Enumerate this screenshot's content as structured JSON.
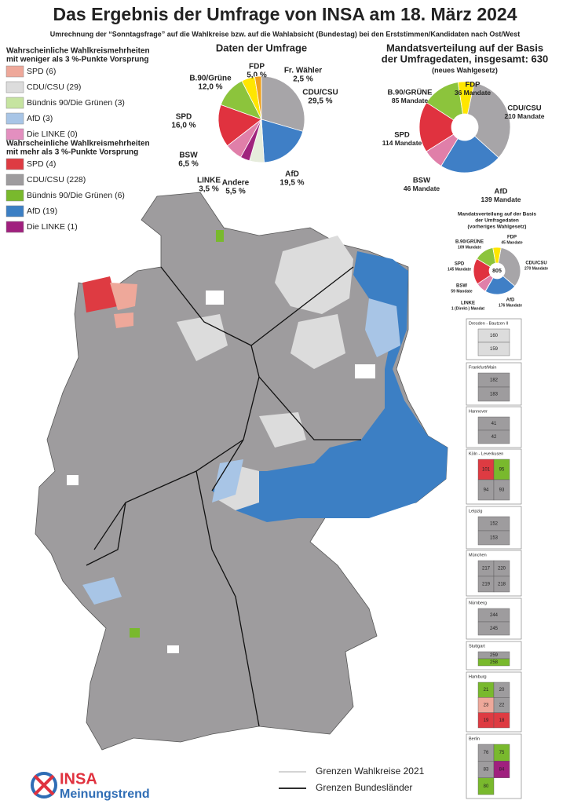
{
  "header": {
    "title": "Das Ergebnis der Umfrage von INSA am 18. März 2024",
    "subtitle": "Umrechnung der “Sonntagsfrage” auf die Wahlkreise bzw. auf die Wahlabsicht (Bundestag) bei den Erststimmen/Kandidaten nach Ost/West"
  },
  "legends": [
    {
      "title": [
        "Wahrscheinliche Wahlkreismehrheiten",
        "mit weniger als 3 %-Punkte Vorsprung"
      ],
      "items": [
        {
          "label": "SPD (6)",
          "color": "#eea89a"
        },
        {
          "label": "CDU/CSU (29)",
          "color": "#dcdcdc"
        },
        {
          "label": "Bündnis 90/Die Grünen (3)",
          "color": "#c6e4a0"
        },
        {
          "label": "AfD (3)",
          "color": "#a8c5e6"
        },
        {
          "label": "Die LINKE (0)",
          "color": "#e38fbf"
        }
      ]
    },
    {
      "title": [
        "Wahrscheinliche Wahlkreismehrheiten",
        "mit mehr als 3 %-Punkte Vorsprung"
      ],
      "items": [
        {
          "label": "SPD (4)",
          "color": "#de3b42"
        },
        {
          "label": "CDU/CSU (228)",
          "color": "#9e9c9e"
        },
        {
          "label": "Bündnis 90/Die Grünen (6)",
          "color": "#79b92d"
        },
        {
          "label": "AfD (19)",
          "color": "#3c7fc4"
        },
        {
          "label": "Die LINKE (1)",
          "color": "#a0207e"
        }
      ]
    }
  ],
  "pies": [
    {
      "title": [
        "Daten der Umfrage"
      ],
      "slices": [
        {
          "name": "CDU/CSU",
          "value": 29.5,
          "value_label": "29,5 %",
          "color": "#a7a5a8"
        },
        {
          "name": "AfD",
          "value": 19.5,
          "value_label": "19,5 %",
          "color": "#3f7fc6"
        },
        {
          "name": "Andere",
          "value": 5.5,
          "value_label": "5,5 %",
          "color": "#e6ecdc"
        },
        {
          "name": "LINKE",
          "value": 3.5,
          "value_label": "3,5 %",
          "color": "#a0237d"
        },
        {
          "name": "BSW",
          "value": 6.5,
          "value_label": "6,5 %",
          "color": "#e07fa9"
        },
        {
          "name": "SPD",
          "value": 16.0,
          "value_label": "16,0 %",
          "color": "#e0323f"
        },
        {
          "name": "B.90/Grüne",
          "value": 12.0,
          "value_label": "12,0 %",
          "color": "#8cc43c"
        },
        {
          "name": "FDP",
          "value": 5.0,
          "value_label": "5,0 %",
          "color": "#ffe600"
        },
        {
          "name": "Fr. Wähler",
          "value": 2.5,
          "value_label": "2,5 %",
          "color": "#f0a21c"
        }
      ]
    },
    {
      "title": [
        "Mandatsverteilung auf der Basis",
        "der Umfragedaten, insgesamt: 630",
        "(neues Wahlgesetz)"
      ],
      "slices": [
        {
          "name": "CDU/CSU",
          "value": 210,
          "value_label": "210 Mandate",
          "color": "#a7a5a8"
        },
        {
          "name": "AfD",
          "value": 139,
          "value_label": "139 Mandate",
          "color": "#3f7fc6"
        },
        {
          "name": "BSW",
          "value": 46,
          "value_label": "46 Mandate",
          "color": "#e07fa9"
        },
        {
          "name": "SPD",
          "value": 114,
          "value_label": "114 Mandate",
          "color": "#e0323f"
        },
        {
          "name": "B.90/GRÜNE",
          "value": 85,
          "value_label": "85 Mandate",
          "color": "#8cc43c"
        },
        {
          "name": "FDP",
          "value": 36,
          "value_label": "36 Mandate",
          "color": "#ffe600"
        }
      ]
    },
    {
      "title": [
        "Mandatsverteilung auf der Basis",
        "der Umfragedaten",
        "(vorheriges Wahlgesetz)"
      ],
      "center_label": "805",
      "slices": [
        {
          "name": "CDU/CSU",
          "value": 270,
          "value_label": "270 Mandate",
          "color": "#a7a5a8"
        },
        {
          "name": "AfD",
          "value": 176,
          "value_label": "176 Mandate",
          "color": "#3f7fc6"
        },
        {
          "name": "LINKE",
          "value": 1,
          "value_label": "1 (Direkt-) Mandat",
          "color": "#a0237d"
        },
        {
          "name": "BSW",
          "value": 59,
          "value_label": "59 Mandate",
          "color": "#e07fa9"
        },
        {
          "name": "SPD",
          "value": 145,
          "value_label": "145 Mandate",
          "color": "#e0323f"
        },
        {
          "name": "B.90/GRÜNE",
          "value": 109,
          "value_label": "109 Mandate",
          "color": "#8cc43c"
        },
        {
          "name": "FDP",
          "value": 45,
          "value_label": "45 Mandate",
          "color": "#ffe600"
        }
      ]
    }
  ],
  "insets": [
    {
      "title": "Dresden - Bautzen II",
      "labels": [
        "160",
        "159"
      ]
    },
    {
      "title": "Frankfurt/Main",
      "labels": [
        "182",
        "183"
      ]
    },
    {
      "title": "Hannover",
      "labels": [
        "41",
        "42"
      ]
    },
    {
      "title": "Köln - Leverkusen",
      "labels": [
        "101",
        "95",
        "94",
        "93"
      ]
    },
    {
      "title": "Leipzig",
      "labels": [
        "152",
        "153"
      ]
    },
    {
      "title": "München",
      "labels": [
        "217",
        "220",
        "219",
        "218"
      ]
    },
    {
      "title": "Nürnberg",
      "labels": [
        "244",
        "245"
      ]
    },
    {
      "title": "Stuttgart",
      "labels": [
        "259",
        "258"
      ]
    },
    {
      "title": "Hamburg",
      "labels": [
        "21",
        "20",
        "23",
        "22",
        "19",
        "18"
      ]
    },
    {
      "title": "Berlin",
      "labels": [
        "76",
        "75",
        "83",
        "84",
        "80"
      ]
    }
  ],
  "map_legend": [
    "Grenzen Wahlkreise 2021",
    "Grenzen Bundesländer"
  ],
  "logo": {
    "brand": "INSA",
    "tagline": "Meinungstrend"
  }
}
